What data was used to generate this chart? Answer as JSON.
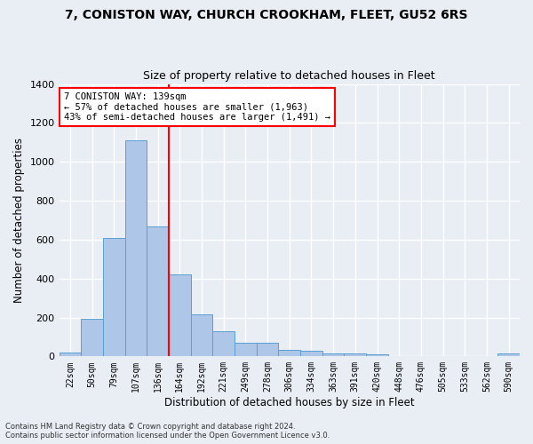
{
  "title1": "7, CONISTON WAY, CHURCH CROOKHAM, FLEET, GU52 6RS",
  "title2": "Size of property relative to detached houses in Fleet",
  "xlabel": "Distribution of detached houses by size in Fleet",
  "ylabel": "Number of detached properties",
  "categories": [
    "22sqm",
    "50sqm",
    "79sqm",
    "107sqm",
    "136sqm",
    "164sqm",
    "192sqm",
    "221sqm",
    "249sqm",
    "278sqm",
    "306sqm",
    "334sqm",
    "363sqm",
    "391sqm",
    "420sqm",
    "448sqm",
    "476sqm",
    "505sqm",
    "533sqm",
    "562sqm",
    "590sqm"
  ],
  "values": [
    20,
    195,
    610,
    1110,
    670,
    420,
    215,
    130,
    72,
    72,
    35,
    30,
    15,
    13,
    10,
    0,
    0,
    0,
    0,
    0,
    15
  ],
  "bar_color": "#aec6e8",
  "bar_edge_color": "#5a9fd4",
  "bg_color": "#e8eef4",
  "grid_color": "#ffffff",
  "vline_x": 4.5,
  "vline_color": "red",
  "annotation_text": "7 CONISTON WAY: 139sqm\n← 57% of detached houses are smaller (1,963)\n43% of semi-detached houses are larger (1,491) →",
  "annotation_box_color": "white",
  "annotation_box_edge": "red",
  "ylim": [
    0,
    1400
  ],
  "yticks": [
    0,
    200,
    400,
    600,
    800,
    1000,
    1200,
    1400
  ],
  "footnote1": "Contains HM Land Registry data © Crown copyright and database right 2024.",
  "footnote2": "Contains public sector information licensed under the Open Government Licence v3.0."
}
